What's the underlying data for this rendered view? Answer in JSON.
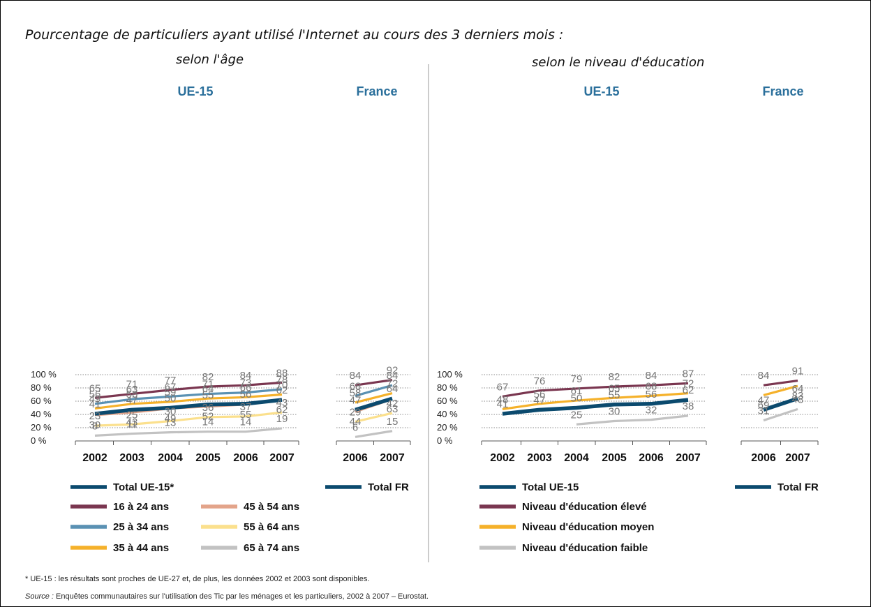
{
  "title": "Pourcentage de particuliers ayant utilisé l'Internet au cours des 3 derniers mois :",
  "subtitle_age": "selon l'âge",
  "subtitle_edu": "selon le niveau d'éducation",
  "colors": {
    "total": "#0b4a6e",
    "s16_24": "#7a3650",
    "s25_34": "#5a91b3",
    "s35_44": "#f5b12a",
    "s45_54": "#e3a48a",
    "s55_64": "#fbe08d",
    "s65_74": "#c2c2c2",
    "edu_high": "#7a3650",
    "edu_mid": "#f5b12a",
    "edu_low": "#c2c2c2"
  },
  "chart_data": [
    {
      "type": "line",
      "panel": "UE-15",
      "ylim": [
        0,
        100
      ],
      "yticks": [
        "0 %",
        "20 %",
        "40 %",
        "60 %",
        "80 %",
        "100 %"
      ],
      "categories": [
        "2002",
        "2003",
        "2004",
        "2005",
        "2006",
        "2007"
      ],
      "series": [
        {
          "name": "16 à 24 ans",
          "color": "s16_24",
          "values": [
            65,
            71,
            77,
            82,
            84,
            88
          ]
        },
        {
          "name": "25 à 34 ans",
          "color": "s25_34",
          "values": [
            56,
            63,
            67,
            71,
            73,
            78
          ]
        },
        {
          "name": "35 à 44 ans",
          "color": "s35_44",
          "values": [
            49,
            56,
            59,
            64,
            66,
            70
          ]
        },
        {
          "name": "Total UE-15*",
          "color": "total",
          "values": [
            41,
            47,
            50,
            55,
            56,
            62
          ],
          "bold": true
        },
        {
          "name": "45 à 54 ans",
          "color": "s45_54",
          "values": [
            39,
            43,
            49,
            52,
            55,
            62
          ],
          "labels_below": true
        },
        {
          "name": "55 à 64 ans",
          "color": "s55_64",
          "values": [
            23,
            25,
            30,
            36,
            37,
            43
          ]
        },
        {
          "name": "65 à 74 ans",
          "color": "s65_74",
          "values": [
            8,
            11,
            13,
            14,
            14,
            19
          ]
        }
      ]
    },
    {
      "type": "line",
      "panel": "France",
      "ylim": [
        0,
        100
      ],
      "categories": [
        "2006",
        "2007"
      ],
      "series": [
        {
          "name": "16 à 24 ans",
          "color": "s16_24",
          "values": [
            84,
            92
          ]
        },
        {
          "name": "25 à 34 ans",
          "color": "s25_34",
          "values": [
            68,
            84
          ]
        },
        {
          "name": "35 à 44 ans",
          "color": "s35_44",
          "values": [
            58,
            72
          ]
        },
        {
          "name": "Total FR",
          "color": "total",
          "values": [
            47,
            64
          ],
          "bold": true
        },
        {
          "name": "45 à 54 ans",
          "color": "s45_54",
          "values": [
            44,
            63
          ],
          "labels_below": true
        },
        {
          "name": "55 à 64 ans",
          "color": "s55_64",
          "values": [
            29,
            42
          ]
        },
        {
          "name": "65 à 74 ans",
          "color": "s65_74",
          "values": [
            6,
            15
          ]
        }
      ]
    },
    {
      "type": "line",
      "panel": "UE-15",
      "ylim": [
        0,
        100
      ],
      "yticks": [
        "0 %",
        "20 %",
        "40 %",
        "60 %",
        "80 %",
        "100 %"
      ],
      "categories": [
        "2002",
        "2003",
        "2004",
        "2005",
        "2006",
        "2007"
      ],
      "series": [
        {
          "name": "Niveau d'éducation élevé",
          "color": "edu_high",
          "values": [
            67,
            76,
            79,
            82,
            84,
            87
          ]
        },
        {
          "name": "Niveau d'éducation moyen",
          "color": "edu_mid",
          "values": [
            48,
            56,
            61,
            65,
            68,
            72
          ]
        },
        {
          "name": "Total UE-15",
          "color": "total",
          "values": [
            41,
            47,
            50,
            55,
            56,
            62
          ],
          "bold": true
        },
        {
          "name": "Niveau d'éducation faible",
          "color": "edu_low",
          "values": [
            null,
            null,
            25,
            30,
            32,
            38
          ]
        }
      ]
    },
    {
      "type": "line",
      "panel": "France",
      "ylim": [
        0,
        100
      ],
      "categories": [
        "2006",
        "2007"
      ],
      "series": [
        {
          "name": "Niveau d'éducation élevé",
          "color": "edu_high",
          "values": [
            84,
            91
          ]
        },
        {
          "name": "Niveau d'éducation moyen",
          "color": "edu_mid",
          "values": [
            69,
            83
          ],
          "labels_below": true
        },
        {
          "name": "Total FR",
          "color": "total",
          "values": [
            47,
            64
          ],
          "bold": true
        },
        {
          "name": "Niveau d'éducation faible",
          "color": "edu_low",
          "values": [
            31,
            48
          ]
        }
      ]
    }
  ],
  "legend_age": {
    "col1": [
      {
        "label": "Total UE-15*",
        "color": "total"
      },
      {
        "label": "16 à 24 ans",
        "color": "s16_24"
      },
      {
        "label": "25 à 34 ans",
        "color": "s25_34"
      },
      {
        "label": "35 à 44 ans",
        "color": "s35_44"
      }
    ],
    "col2": [
      {
        "label": "45 à 54 ans",
        "color": "s45_54"
      },
      {
        "label": "55 à 64 ans",
        "color": "s55_64"
      },
      {
        "label": "65 à 74 ans",
        "color": "s65_74"
      }
    ],
    "france": {
      "label": "Total FR",
      "color": "total"
    }
  },
  "legend_edu": {
    "col1": [
      {
        "label": "Total UE-15",
        "color": "total"
      },
      {
        "label": "Niveau d'éducation élevé",
        "color": "edu_high"
      },
      {
        "label": "Niveau d'éducation moyen",
        "color": "edu_mid"
      },
      {
        "label": "Niveau d'éducation faible",
        "color": "edu_low"
      }
    ],
    "france": {
      "label": "Total FR",
      "color": "total"
    }
  },
  "footnote": "* UE-15 : les résultats sont proches de UE-27 et, de plus, les données 2002 et 2003 sont disponibles.",
  "source_label": "Source :",
  "source_text": " Enquêtes communautaires sur l'utilisation des Tic par les ménages et les particuliers, 2002 à 2007 – Eurostat."
}
